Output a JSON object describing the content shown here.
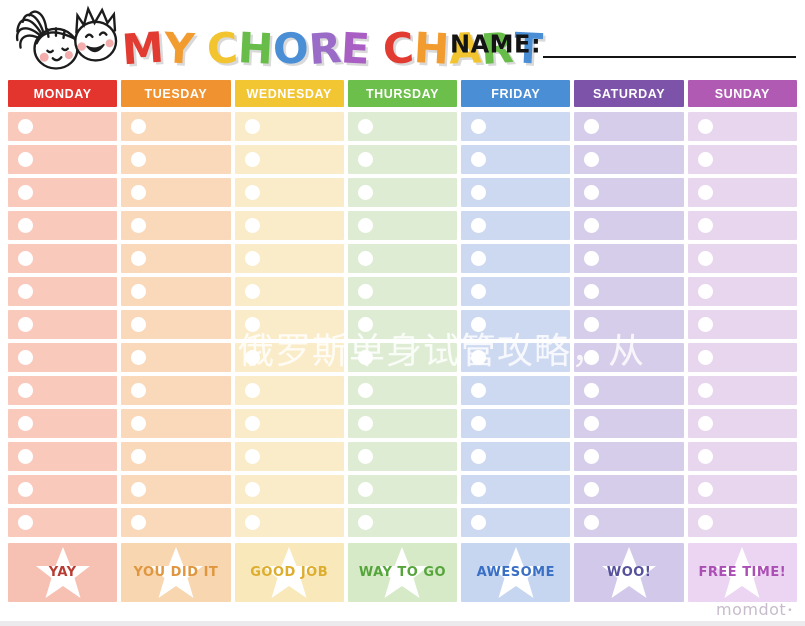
{
  "title": {
    "letters": [
      {
        "ch": "M",
        "color": "#e23b31"
      },
      {
        "ch": "Y",
        "color": "#f29b2f"
      },
      {
        "ch": " "
      },
      {
        "ch": "C",
        "color": "#f2c430"
      },
      {
        "ch": "H",
        "color": "#68bd4a"
      },
      {
        "ch": "O",
        "color": "#4a8ed6"
      },
      {
        "ch": "R",
        "color": "#9a6cc8"
      },
      {
        "ch": "E",
        "color": "#a85ec2"
      },
      {
        "ch": " "
      },
      {
        "ch": "C",
        "color": "#e23b31"
      },
      {
        "ch": "H",
        "color": "#f29b2f"
      },
      {
        "ch": "A",
        "color": "#f2c430"
      },
      {
        "ch": "R",
        "color": "#68bd4a"
      },
      {
        "ch": "T",
        "color": "#4a8ed6"
      }
    ]
  },
  "name_label": "NAME:",
  "table": {
    "rows_per_day": 13,
    "days": [
      {
        "label": "MONDAY",
        "header_bg": "#e3342e",
        "row_bg": "#f9c9bc",
        "reward": {
          "label": "YAY",
          "color": "#b93c33",
          "bg": "#f6c1b2"
        }
      },
      {
        "label": "TUESDAY",
        "header_bg": "#f0922f",
        "row_bg": "#f9d9ba",
        "reward": {
          "label": "YOU DID IT",
          "color": "#e0963f",
          "bg": "#f8d6af"
        }
      },
      {
        "label": "WEDNESDAY",
        "header_bg": "#f2c532",
        "row_bg": "#faecc8",
        "reward": {
          "label": "GOOD JOB",
          "color": "#ddad2e",
          "bg": "#f9e8ba"
        }
      },
      {
        "label": "THURSDAY",
        "header_bg": "#6cbf4a",
        "row_bg": "#ddecd2",
        "reward": {
          "label": "WAY TO GO",
          "color": "#55a53b",
          "bg": "#d6eac8"
        }
      },
      {
        "label": "FRIDAY",
        "header_bg": "#4a8ed6",
        "row_bg": "#cdd9f0",
        "reward": {
          "label": "AWESOME",
          "color": "#3a6fc6",
          "bg": "#c6d6f1"
        }
      },
      {
        "label": "SATURDAY",
        "header_bg": "#7d52a9",
        "row_bg": "#d6cdea",
        "reward": {
          "label": "WOO!",
          "color": "#55519c",
          "bg": "#d2c8ea"
        }
      },
      {
        "label": "SUNDAY",
        "header_bg": "#b05ab4",
        "row_bg": "#e8d6ee",
        "reward": {
          "label": "FREE TIME!",
          "color": "#ab4fb5",
          "bg": "#ecd5f2"
        }
      }
    ]
  },
  "watermark": "俄罗斯单身试管攻略，从",
  "footer": {
    "brand": "momdot",
    "mark": "•"
  }
}
